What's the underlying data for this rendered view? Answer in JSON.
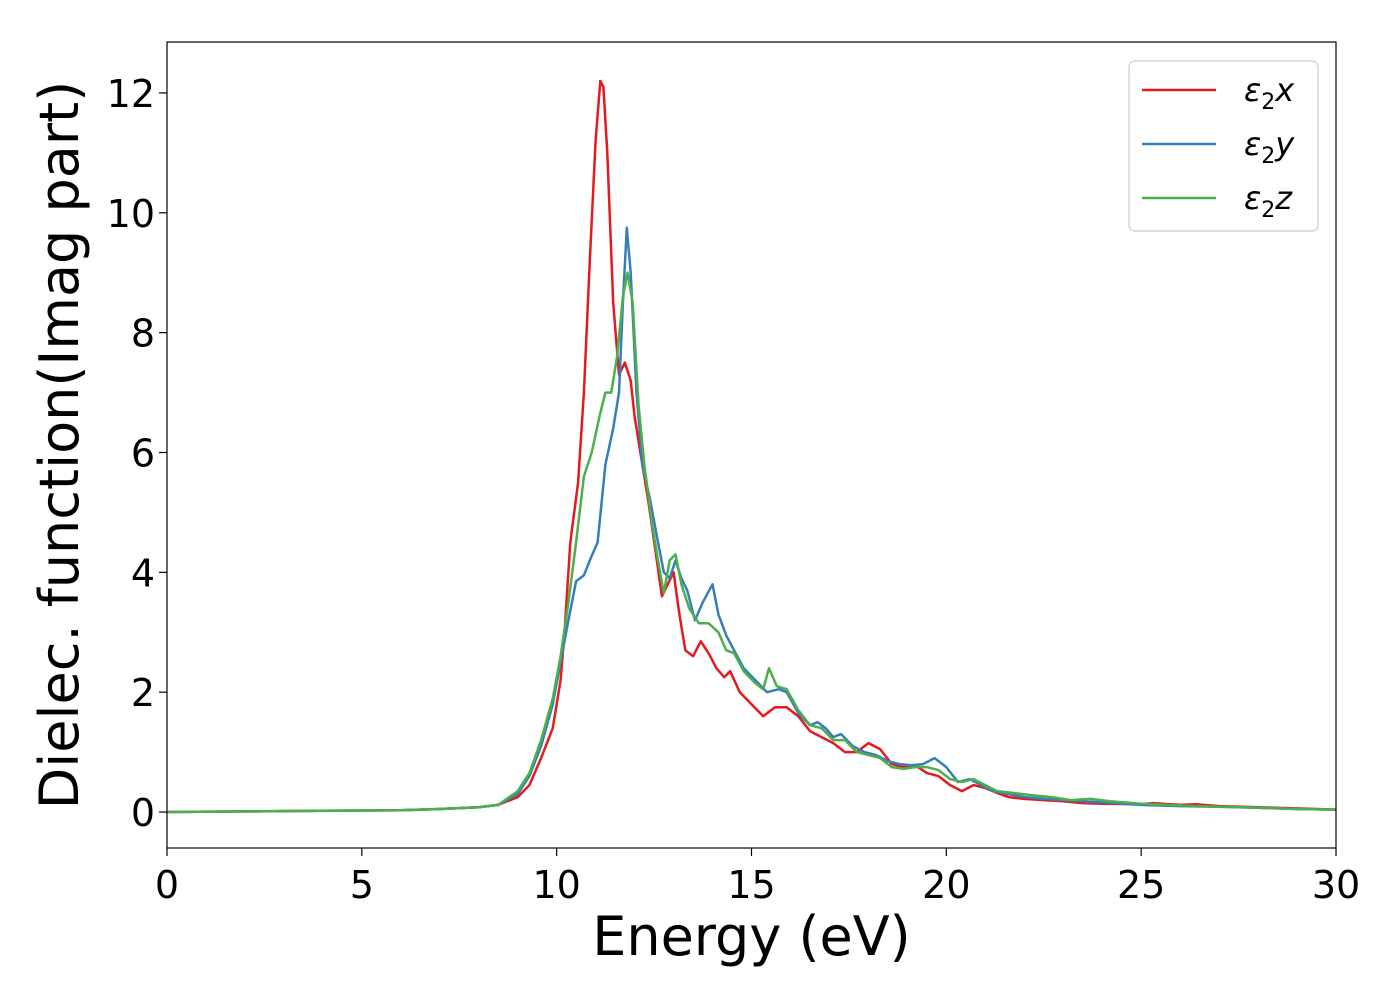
{
  "chart_data": {
    "type": "line",
    "title": "",
    "xlabel": "Energy (eV)",
    "ylabel": "Dielec. function(Imag part)",
    "xlim": [
      0,
      30
    ],
    "ylim": [
      -0.6,
      12.85
    ],
    "xticks": [
      0,
      5,
      10,
      15,
      20,
      25,
      30
    ],
    "yticks": [
      0,
      2,
      4,
      6,
      8,
      10,
      12
    ],
    "grid": false,
    "legend_position": "top-right",
    "series": [
      {
        "name": "ε2x",
        "legend_base": "ε",
        "legend_sub": "2",
        "legend_suffix": "x",
        "color": "#e41a1c",
        "points": [
          [
            0,
            0.0
          ],
          [
            2,
            0.01
          ],
          [
            4,
            0.02
          ],
          [
            6,
            0.03
          ],
          [
            7,
            0.05
          ],
          [
            8,
            0.08
          ],
          [
            8.5,
            0.12
          ],
          [
            9,
            0.25
          ],
          [
            9.3,
            0.45
          ],
          [
            9.6,
            0.9
          ],
          [
            9.9,
            1.4
          ],
          [
            10.1,
            2.2
          ],
          [
            10.2,
            3.0
          ],
          [
            10.35,
            4.5
          ],
          [
            10.55,
            5.5
          ],
          [
            10.7,
            7.0
          ],
          [
            10.85,
            9.2
          ],
          [
            11.0,
            11.2
          ],
          [
            11.12,
            12.2
          ],
          [
            11.2,
            12.1
          ],
          [
            11.3,
            11.0
          ],
          [
            11.45,
            8.5
          ],
          [
            11.6,
            7.3
          ],
          [
            11.75,
            7.5
          ],
          [
            11.9,
            7.2
          ],
          [
            12.0,
            6.6
          ],
          [
            12.15,
            6.0
          ],
          [
            12.35,
            5.2
          ],
          [
            12.55,
            4.3
          ],
          [
            12.7,
            3.6
          ],
          [
            12.85,
            3.8
          ],
          [
            13.0,
            4.0
          ],
          [
            13.15,
            3.3
          ],
          [
            13.3,
            2.7
          ],
          [
            13.5,
            2.6
          ],
          [
            13.7,
            2.85
          ],
          [
            13.9,
            2.65
          ],
          [
            14.1,
            2.4
          ],
          [
            14.3,
            2.25
          ],
          [
            14.45,
            2.35
          ],
          [
            14.7,
            2.0
          ],
          [
            15.0,
            1.8
          ],
          [
            15.3,
            1.6
          ],
          [
            15.6,
            1.75
          ],
          [
            15.9,
            1.75
          ],
          [
            16.2,
            1.6
          ],
          [
            16.5,
            1.35
          ],
          [
            16.8,
            1.25
          ],
          [
            17.1,
            1.15
          ],
          [
            17.4,
            1.0
          ],
          [
            17.7,
            1.0
          ],
          [
            18.0,
            1.15
          ],
          [
            18.3,
            1.05
          ],
          [
            18.6,
            0.8
          ],
          [
            18.9,
            0.75
          ],
          [
            19.2,
            0.78
          ],
          [
            19.5,
            0.65
          ],
          [
            19.8,
            0.6
          ],
          [
            20.1,
            0.45
          ],
          [
            20.4,
            0.35
          ],
          [
            20.7,
            0.45
          ],
          [
            21.0,
            0.4
          ],
          [
            21.3,
            0.32
          ],
          [
            21.6,
            0.25
          ],
          [
            22.0,
            0.22
          ],
          [
            22.5,
            0.2
          ],
          [
            23.0,
            0.18
          ],
          [
            23.5,
            0.15
          ],
          [
            24.0,
            0.14
          ],
          [
            25.0,
            0.13
          ],
          [
            25.3,
            0.15
          ],
          [
            26.0,
            0.12
          ],
          [
            26.4,
            0.13
          ],
          [
            27.0,
            0.1
          ],
          [
            28.0,
            0.08
          ],
          [
            29.0,
            0.06
          ],
          [
            30.0,
            0.04
          ]
        ]
      },
      {
        "name": "ε2y",
        "legend_base": "ε",
        "legend_sub": "2",
        "legend_suffix": "y",
        "color": "#377eb8",
        "points": [
          [
            0,
            0.0
          ],
          [
            2,
            0.01
          ],
          [
            4,
            0.02
          ],
          [
            6,
            0.03
          ],
          [
            7,
            0.05
          ],
          [
            8,
            0.08
          ],
          [
            8.5,
            0.12
          ],
          [
            9,
            0.3
          ],
          [
            9.3,
            0.6
          ],
          [
            9.6,
            1.1
          ],
          [
            9.9,
            1.8
          ],
          [
            10.1,
            2.5
          ],
          [
            10.3,
            3.2
          ],
          [
            10.5,
            3.85
          ],
          [
            10.7,
            3.95
          ],
          [
            10.85,
            4.2
          ],
          [
            11.05,
            4.5
          ],
          [
            11.25,
            5.8
          ],
          [
            11.45,
            6.4
          ],
          [
            11.6,
            7.0
          ],
          [
            11.7,
            8.5
          ],
          [
            11.8,
            9.75
          ],
          [
            11.9,
            9.0
          ],
          [
            12.05,
            7.0
          ],
          [
            12.2,
            5.8
          ],
          [
            12.4,
            5.2
          ],
          [
            12.6,
            4.5
          ],
          [
            12.75,
            4.0
          ],
          [
            12.9,
            3.9
          ],
          [
            13.05,
            4.2
          ],
          [
            13.2,
            3.9
          ],
          [
            13.35,
            3.7
          ],
          [
            13.55,
            3.2
          ],
          [
            13.75,
            3.5
          ],
          [
            14.0,
            3.8
          ],
          [
            14.15,
            3.3
          ],
          [
            14.35,
            2.95
          ],
          [
            14.55,
            2.7
          ],
          [
            14.8,
            2.4
          ],
          [
            15.1,
            2.2
          ],
          [
            15.4,
            2.0
          ],
          [
            15.7,
            2.05
          ],
          [
            15.9,
            2.0
          ],
          [
            16.2,
            1.65
          ],
          [
            16.5,
            1.45
          ],
          [
            16.7,
            1.5
          ],
          [
            16.9,
            1.4
          ],
          [
            17.1,
            1.25
          ],
          [
            17.3,
            1.3
          ],
          [
            17.6,
            1.1
          ],
          [
            17.9,
            1.0
          ],
          [
            18.2,
            0.95
          ],
          [
            18.5,
            0.85
          ],
          [
            18.8,
            0.8
          ],
          [
            19.1,
            0.78
          ],
          [
            19.4,
            0.8
          ],
          [
            19.7,
            0.9
          ],
          [
            20.0,
            0.75
          ],
          [
            20.3,
            0.5
          ],
          [
            20.6,
            0.55
          ],
          [
            20.9,
            0.45
          ],
          [
            21.2,
            0.35
          ],
          [
            21.6,
            0.3
          ],
          [
            22.0,
            0.25
          ],
          [
            22.5,
            0.22
          ],
          [
            23.0,
            0.2
          ],
          [
            23.5,
            0.18
          ],
          [
            24.0,
            0.16
          ],
          [
            25.0,
            0.12
          ],
          [
            26.0,
            0.1
          ],
          [
            27.0,
            0.09
          ],
          [
            28.0,
            0.07
          ],
          [
            29.0,
            0.05
          ],
          [
            30.0,
            0.04
          ]
        ]
      },
      {
        "name": "ε2z",
        "legend_base": "ε",
        "legend_sub": "2",
        "legend_suffix": "z",
        "color": "#4daf4a",
        "points": [
          [
            0,
            0.0
          ],
          [
            2,
            0.01
          ],
          [
            4,
            0.02
          ],
          [
            6,
            0.03
          ],
          [
            7,
            0.05
          ],
          [
            8,
            0.08
          ],
          [
            8.5,
            0.12
          ],
          [
            9,
            0.35
          ],
          [
            9.3,
            0.65
          ],
          [
            9.6,
            1.2
          ],
          [
            9.9,
            1.9
          ],
          [
            10.1,
            2.6
          ],
          [
            10.3,
            3.5
          ],
          [
            10.5,
            4.5
          ],
          [
            10.7,
            5.6
          ],
          [
            10.9,
            6.0
          ],
          [
            11.1,
            6.6
          ],
          [
            11.25,
            7.0
          ],
          [
            11.4,
            7.0
          ],
          [
            11.55,
            7.6
          ],
          [
            11.7,
            8.6
          ],
          [
            11.82,
            9.0
          ],
          [
            11.95,
            8.5
          ],
          [
            12.1,
            6.8
          ],
          [
            12.25,
            5.8
          ],
          [
            12.45,
            4.8
          ],
          [
            12.6,
            4.2
          ],
          [
            12.75,
            3.65
          ],
          [
            12.9,
            4.2
          ],
          [
            13.05,
            4.3
          ],
          [
            13.2,
            3.8
          ],
          [
            13.4,
            3.4
          ],
          [
            13.65,
            3.15
          ],
          [
            13.9,
            3.15
          ],
          [
            14.15,
            3.0
          ],
          [
            14.35,
            2.7
          ],
          [
            14.55,
            2.65
          ],
          [
            14.8,
            2.35
          ],
          [
            15.1,
            2.15
          ],
          [
            15.3,
            2.05
          ],
          [
            15.45,
            2.4
          ],
          [
            15.65,
            2.1
          ],
          [
            15.9,
            2.05
          ],
          [
            16.2,
            1.7
          ],
          [
            16.5,
            1.45
          ],
          [
            16.8,
            1.4
          ],
          [
            17.1,
            1.2
          ],
          [
            17.4,
            1.2
          ],
          [
            17.7,
            1.0
          ],
          [
            18.0,
            0.95
          ],
          [
            18.3,
            0.9
          ],
          [
            18.6,
            0.75
          ],
          [
            18.9,
            0.72
          ],
          [
            19.2,
            0.75
          ],
          [
            19.5,
            0.75
          ],
          [
            19.8,
            0.7
          ],
          [
            20.1,
            0.55
          ],
          [
            20.4,
            0.5
          ],
          [
            20.7,
            0.55
          ],
          [
            21.0,
            0.45
          ],
          [
            21.3,
            0.35
          ],
          [
            21.7,
            0.32
          ],
          [
            22.2,
            0.28
          ],
          [
            22.7,
            0.25
          ],
          [
            23.2,
            0.2
          ],
          [
            23.7,
            0.22
          ],
          [
            24.2,
            0.18
          ],
          [
            25.0,
            0.14
          ],
          [
            26.0,
            0.11
          ],
          [
            27.0,
            0.09
          ],
          [
            28.0,
            0.07
          ],
          [
            29.0,
            0.05
          ],
          [
            30.0,
            0.04
          ]
        ]
      }
    ]
  }
}
